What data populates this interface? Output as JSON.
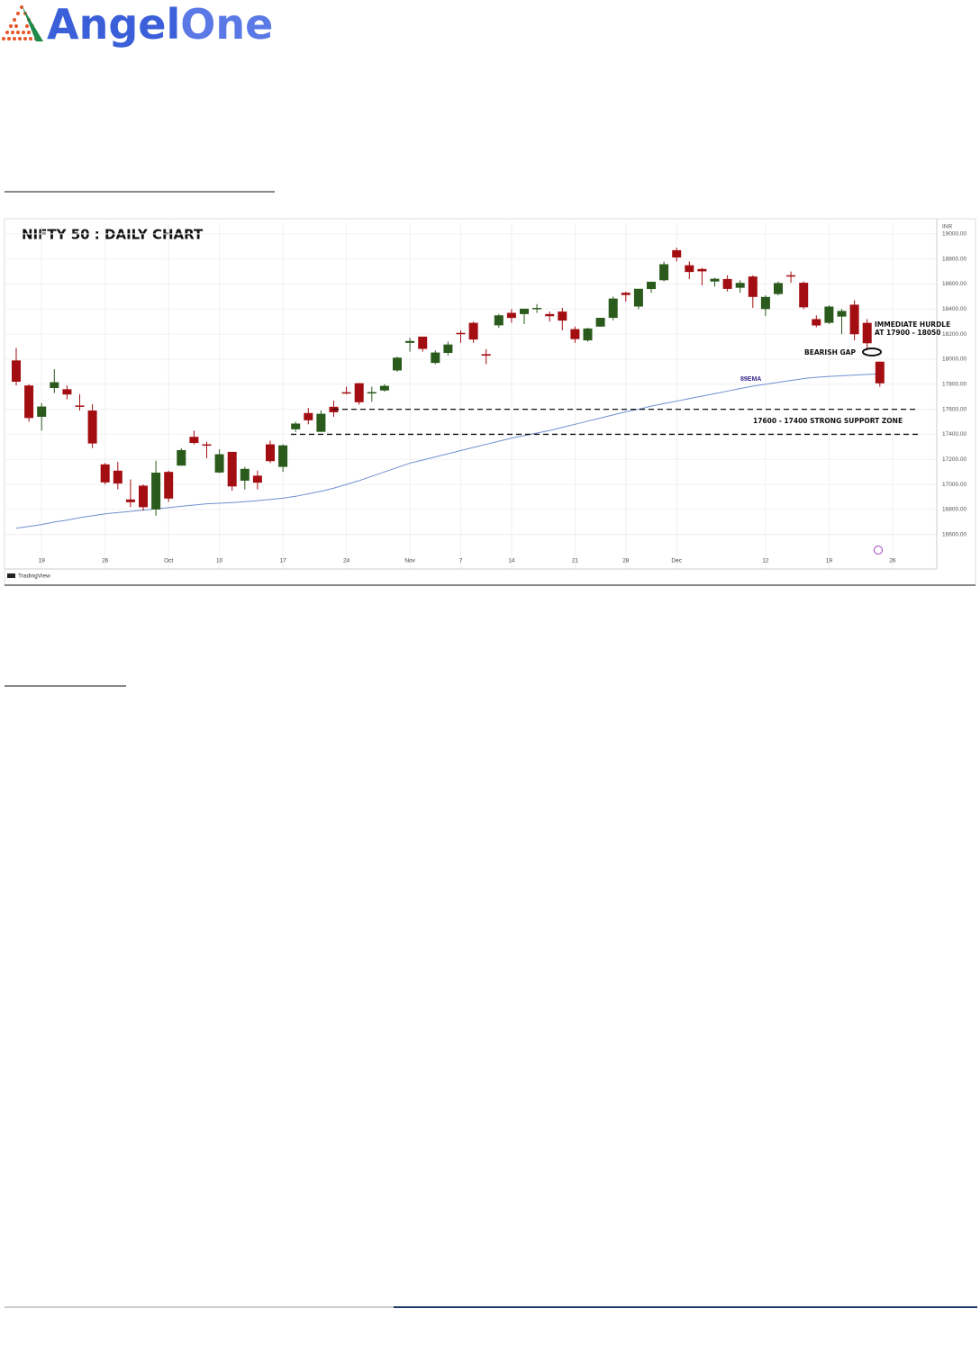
{
  "header": {
    "logo": [
      "Angel",
      "One"
    ]
  },
  "chart_data": {
    "type": "candlestick",
    "title": "NIFTY 50 : DAILY CHART",
    "currency": "INR",
    "source": "TradingView",
    "categories": [
      null,
      null,
      "19",
      null,
      null,
      null,
      null,
      "26",
      null,
      null,
      null,
      null,
      "Oct",
      null,
      null,
      null,
      "10",
      null,
      null,
      null,
      null,
      "17",
      null,
      null,
      null,
      null,
      "24",
      null,
      null,
      null,
      null,
      "Nov",
      null,
      null,
      null,
      "7",
      null,
      null,
      null,
      "14",
      null,
      null,
      null,
      null,
      "21",
      null,
      null,
      null,
      "28",
      null,
      null,
      null,
      "Dec",
      null,
      null,
      null,
      null,
      null,
      null,
      "12",
      null,
      null,
      null,
      null,
      "19",
      null,
      null,
      null,
      null,
      "26"
    ],
    "open": [
      17990,
      17790,
      17540,
      17770,
      17760,
      17630,
      17590,
      17160,
      17110,
      16880,
      16990,
      16800,
      17100,
      17150,
      17380,
      17320,
      17095,
      17260,
      17030,
      17070,
      17320,
      17140,
      17440,
      17570,
      17420,
      17620,
      17736,
      17808,
      17730,
      17750,
      17910,
      18130,
      18180,
      17970,
      18050,
      18210,
      18290,
      18040,
      18270,
      18370,
      18360,
      18400,
      18360,
      18380,
      18240,
      18150,
      18260,
      18330,
      18530,
      18420,
      18560,
      18630,
      18870,
      18750,
      18720,
      18620,
      18640,
      18570,
      18660,
      18400,
      18520,
      18670,
      18610,
      18320,
      18290,
      18340,
      18435,
      18290,
      17980,
      null
    ],
    "high": [
      18090,
      17800,
      17650,
      17920,
      17790,
      17720,
      17640,
      17170,
      17180,
      17040,
      17000,
      17190,
      17110,
      17290,
      17430,
      17340,
      17280,
      17260,
      17140,
      17110,
      17350,
      17320,
      17500,
      17610,
      17590,
      17670,
      17780,
      17810,
      17780,
      17800,
      18020,
      18170,
      18180,
      18070,
      18140,
      18230,
      18300,
      18080,
      18360,
      18400,
      18400,
      18440,
      18380,
      18410,
      18260,
      18250,
      18330,
      18500,
      18540,
      18560,
      18620,
      18780,
      18890,
      18780,
      18730,
      18650,
      18670,
      18630,
      18670,
      18510,
      18620,
      18700,
      18620,
      18350,
      18430,
      18400,
      18470,
      18320,
      17980,
      null
    ],
    "low": [
      17790,
      17500,
      17430,
      17730,
      17680,
      17590,
      17290,
      17000,
      16960,
      16820,
      16790,
      16750,
      16860,
      17150,
      17320,
      17210,
      17090,
      16950,
      16960,
      16960,
      17170,
      17100,
      17420,
      17480,
      17420,
      17540,
      17720,
      17637,
      17660,
      17740,
      17900,
      18060,
      18060,
      17960,
      18030,
      18130,
      18130,
      17960,
      18250,
      18290,
      18280,
      18370,
      18300,
      18230,
      18130,
      18140,
      18260,
      18310,
      18460,
      18400,
      18530,
      18620,
      18780,
      18640,
      18590,
      18580,
      18540,
      18530,
      18410,
      18345,
      18510,
      18610,
      18400,
      18255,
      18280,
      18200,
      18150,
      18070,
      17780,
      null
    ],
    "close": [
      17820,
      17530,
      17622,
      17816,
      17718,
      17629,
      17327,
      17016,
      17007,
      16858,
      16818,
      17094,
      16887,
      17274,
      17331,
      17315,
      17241,
      16984,
      17124,
      17014,
      17186,
      17312,
      17486,
      17512,
      17564,
      17576,
      17730,
      17656,
      17737,
      17787,
      18012,
      18145,
      18082,
      18053,
      18117,
      18203,
      18157,
      18028,
      18350,
      18329,
      18403,
      18409,
      18343,
      18308,
      18160,
      18245,
      18330,
      18484,
      18512,
      18562,
      18618,
      18758,
      18812,
      18696,
      18701,
      18642,
      18561,
      18609,
      18497,
      18497,
      18608,
      18660,
      18414,
      18269,
      18420,
      18385,
      18199,
      18127,
      17807,
      null
    ],
    "up_color": "#2a5a1c",
    "down_color": "#a30e12",
    "ema": {
      "name": "89EMA",
      "color": "#6f8fcf",
      "values": [
        16650,
        16665,
        16680,
        16700,
        16715,
        16735,
        16750,
        16765,
        16775,
        16785,
        16795,
        16805,
        16815,
        16825,
        16835,
        16845,
        16850,
        16855,
        16862,
        16870,
        16880,
        16890,
        16905,
        16925,
        16945,
        16970,
        17000,
        17030,
        17065,
        17100,
        17135,
        17170,
        17195,
        17220,
        17245,
        17270,
        17295,
        17320,
        17345,
        17370,
        17390,
        17410,
        17430,
        17455,
        17480,
        17505,
        17530,
        17555,
        17580,
        17600,
        17625,
        17645,
        17665,
        17685,
        17705,
        17725,
        17745,
        17765,
        17785,
        17800,
        17815,
        17830,
        17845,
        17855,
        17862,
        17868,
        17873,
        17878,
        17882,
        null
      ]
    },
    "ylim": [
      16440,
      19085
    ],
    "yticks": [
      {
        "value": 16600,
        "label": "16600.00"
      },
      {
        "value": 16800,
        "label": "16800.00"
      },
      {
        "value": 17000,
        "label": "17000.00"
      },
      {
        "value": 17200,
        "label": "17200.00"
      },
      {
        "value": 17400,
        "label": "17400.00"
      },
      {
        "value": 17600,
        "label": "17600.00"
      },
      {
        "value": 17800,
        "label": "17800.00"
      },
      {
        "value": 18000,
        "label": "18000.00"
      },
      {
        "value": 18200,
        "label": "18200.00"
      },
      {
        "value": 18400,
        "label": "18400.00"
      },
      {
        "value": 18600,
        "label": "18600.00"
      },
      {
        "value": 18800,
        "label": "18800.00"
      },
      {
        "value": 19000,
        "label": "19000.00"
      }
    ],
    "grid": true,
    "support_levels": [
      17600,
      17400
    ],
    "annotations": {
      "hurdle": [
        "IMMEDIATE HURDLE",
        "AT 17900 - 18050"
      ],
      "gap": "BEARISH GAP",
      "support": "17600 - 17400 STRONG SUPPORT ZONE"
    }
  }
}
